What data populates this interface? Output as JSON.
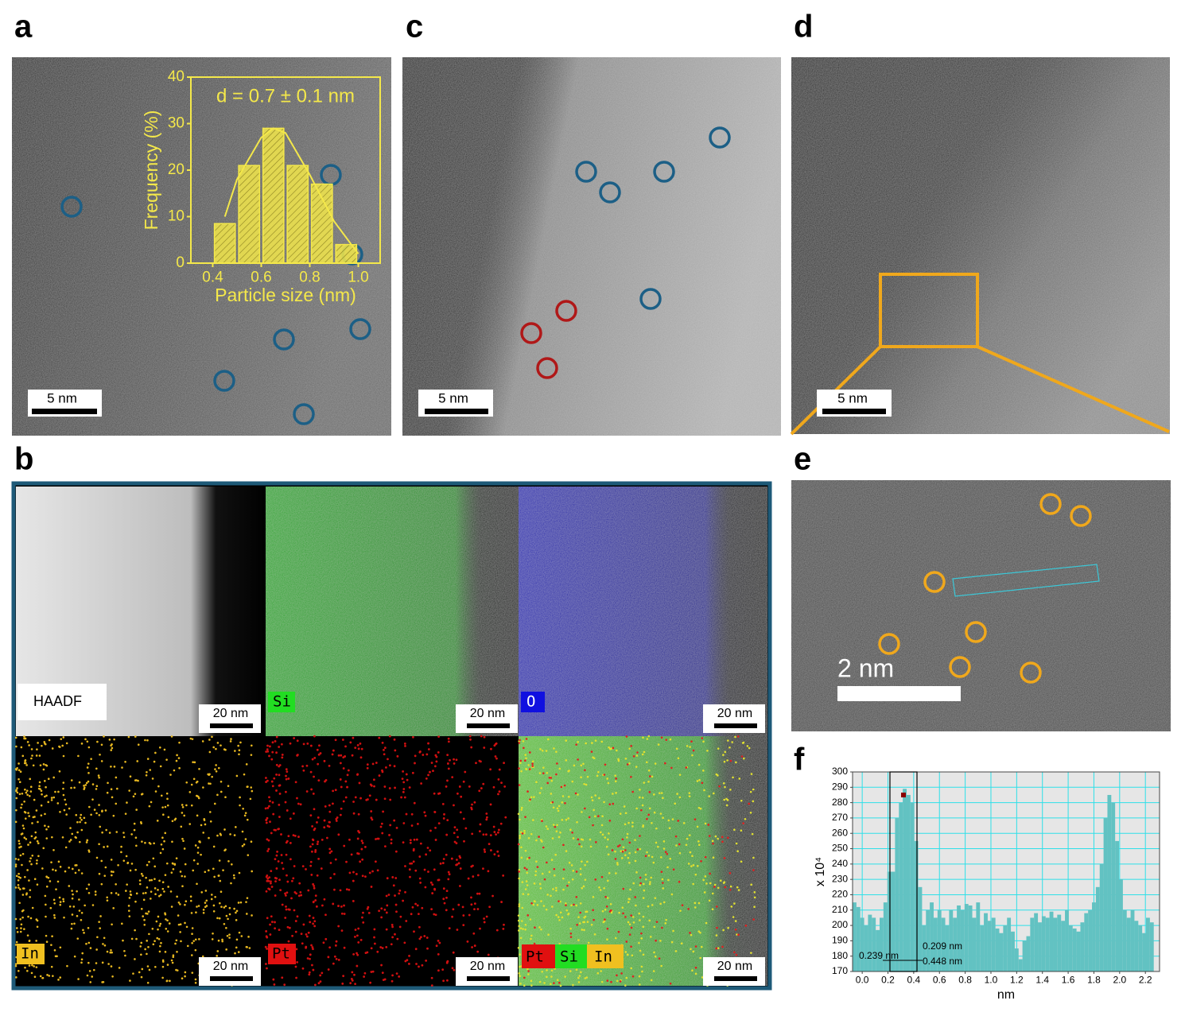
{
  "panels": {
    "a": {
      "label": "a",
      "scale_bar": "5 nm"
    },
    "b": {
      "label": "b"
    },
    "c": {
      "label": "c",
      "scale_bar": "5 nm"
    },
    "d": {
      "label": "d",
      "scale_bar": "5 nm"
    },
    "e": {
      "label": "e",
      "scale_bar": "2 nm"
    },
    "f": {
      "label": "f"
    }
  },
  "maps": [
    {
      "label": "HAADF",
      "scale_bar": "20 nm"
    },
    {
      "label": "Si",
      "scale_bar": "20 nm"
    },
    {
      "label": "O",
      "scale_bar": "20 nm"
    },
    {
      "label": "In",
      "scale_bar": "20 nm"
    },
    {
      "label": "Pt",
      "scale_bar": "20 nm"
    },
    {
      "labels": [
        "Pt",
        "Si",
        "In"
      ],
      "scale_bar": "20 nm"
    }
  ],
  "chart_data": [
    {
      "type": "histogram",
      "title": "d = 0.7 ± 0.1 nm",
      "x_label": "Particle size (nm)",
      "y_label": "Frequency (%)",
      "bins": [
        0.4,
        0.5,
        0.6,
        0.7,
        0.8,
        0.9,
        1.0
      ],
      "values": [
        8.5,
        21,
        29,
        21,
        17,
        4
      ],
      "color": "#f4e84a",
      "fit": {
        "x": [
          0.45,
          0.5,
          0.6,
          0.65,
          0.7,
          0.8,
          0.9,
          1.0
        ],
        "y": [
          10,
          18,
          27,
          29,
          28,
          19,
          9,
          2
        ]
      },
      "xlim": [
        0.31,
        1.09
      ],
      "ylim": [
        0,
        40
      ],
      "xticks": [
        0.4,
        0.6,
        0.8,
        {
          "value": 1,
          "label": "1.0"
        }
      ],
      "yticks": [
        0,
        10,
        20,
        30,
        40
      ]
    },
    {
      "type": "bar",
      "x_label": "nm",
      "y_label": "x 10⁴",
      "color": "#62c2c2",
      "grid": true,
      "x": [
        -0.06,
        -0.03,
        0,
        0.03,
        0.06,
        0.09,
        0.12,
        0.15,
        0.18,
        0.21,
        0.24,
        0.27,
        0.3,
        0.33,
        0.36,
        0.39,
        0.42,
        0.45,
        0.48,
        0.51,
        0.54,
        0.57,
        0.6,
        0.63,
        0.66,
        0.69,
        0.72,
        0.75,
        0.78,
        0.81,
        0.84,
        0.87,
        0.9,
        0.93,
        0.96,
        0.99,
        1.02,
        1.05,
        1.08,
        1.11,
        1.14,
        1.17,
        1.2,
        1.23,
        1.26,
        1.29,
        1.32,
        1.35,
        1.38,
        1.41,
        1.44,
        1.47,
        1.5,
        1.53,
        1.56,
        1.59,
        1.62,
        1.65,
        1.68,
        1.71,
        1.74,
        1.77,
        1.8,
        1.83,
        1.86,
        1.89,
        1.92,
        1.95,
        1.98,
        2.01,
        2.04,
        2.07,
        2.1,
        2.13,
        2.16,
        2.19,
        2.22,
        2.25
      ],
      "values": [
        215,
        212,
        205,
        200,
        207,
        205,
        197,
        205,
        215,
        235,
        235,
        270,
        280,
        289,
        285,
        280,
        255,
        225,
        200,
        210,
        215,
        205,
        210,
        205,
        200,
        210,
        205,
        213,
        210,
        214,
        213,
        205,
        215,
        200,
        208,
        203,
        205,
        198,
        195,
        200,
        205,
        196,
        185,
        178,
        190,
        193,
        205,
        208,
        202,
        206,
        205,
        209,
        205,
        207,
        203,
        210,
        200,
        198,
        196,
        202,
        208,
        210,
        215,
        225,
        240,
        270,
        285,
        280,
        255,
        230,
        210,
        205,
        210,
        203,
        200,
        195,
        205,
        202
      ],
      "annotations": [
        "0.209 nm",
        "0.239 nm",
        "0.448 nm"
      ],
      "xlim": [
        -0.075,
        2.31
      ],
      "ylim": [
        170,
        300
      ],
      "xticks": [
        {
          "value": 0,
          "label": "0.0"
        },
        0.2,
        0.4,
        0.6,
        0.8,
        {
          "value": 1,
          "label": "1.0"
        },
        1.2,
        1.4,
        1.6,
        1.8,
        {
          "value": 2,
          "label": "2.0"
        },
        2.2
      ],
      "yticks": [
        170,
        180,
        190,
        200,
        210,
        220,
        230,
        240,
        250,
        260,
        270,
        280,
        290,
        300
      ]
    }
  ]
}
